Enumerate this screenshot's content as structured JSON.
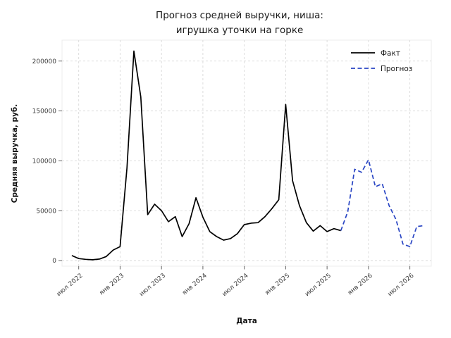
{
  "figure": {
    "background": "#ffffff"
  },
  "chart_data": {
    "type": "line",
    "title_lines": [
      "Прогноз средней выручки, ниша:",
      "игрушка уточки на горке"
    ],
    "xlabel": "Дата",
    "ylabel": "Средняя выручка, руб.",
    "grid": true,
    "grid_style": "dashed",
    "legend_position": "upper right",
    "ylim": [
      0,
      220000
    ],
    "y_ticks": [
      0,
      50000,
      100000,
      150000,
      200000
    ],
    "y_tick_labels": [
      "0",
      "50000",
      "100000",
      "150000",
      "200000"
    ],
    "x_ticks": [
      {
        "label": "июл 2022",
        "month": "2022-07"
      },
      {
        "label": "янв 2023",
        "month": "2023-01"
      },
      {
        "label": "июл 2023",
        "month": "2023-07"
      },
      {
        "label": "янв 2024",
        "month": "2024-01"
      },
      {
        "label": "июл 2024",
        "month": "2024-07"
      },
      {
        "label": "янв 2025",
        "month": "2025-01"
      },
      {
        "label": "июл 2025",
        "month": "2025-07"
      },
      {
        "label": "янв 2026",
        "month": "2026-01"
      },
      {
        "label": "июл 2026",
        "month": "2026-07"
      }
    ],
    "series": [
      {
        "name": "Факт",
        "line_style": "solid",
        "color": "#000000",
        "first_month": "2022-06",
        "values": [
          5000,
          2000,
          1200,
          800,
          1500,
          4000,
          10500,
          14000,
          93000,
          210000,
          164000,
          46000,
          56500,
          50000,
          39000,
          44000,
          24000,
          37000,
          63000,
          43500,
          29000,
          24000,
          20500,
          22000,
          27000,
          36000,
          37500,
          38000,
          44000,
          52000,
          61000,
          156500,
          80000,
          55000,
          38000,
          29500,
          35000,
          29000,
          32000,
          30000
        ]
      },
      {
        "name": "Прогноз",
        "line_style": "dashed",
        "color": "#2a46c4",
        "first_month": "2025-09",
        "values": [
          30000,
          49000,
          91500,
          88500,
          101000,
          74000,
          77000,
          55000,
          41000,
          16500,
          14000,
          34000,
          35000
        ]
      }
    ],
    "colors": {
      "fact_line": "#000000",
      "forecast_line": "#2a46c4",
      "gridline": "#d9d9d9",
      "tick_text": "#3c3c3c"
    }
  }
}
